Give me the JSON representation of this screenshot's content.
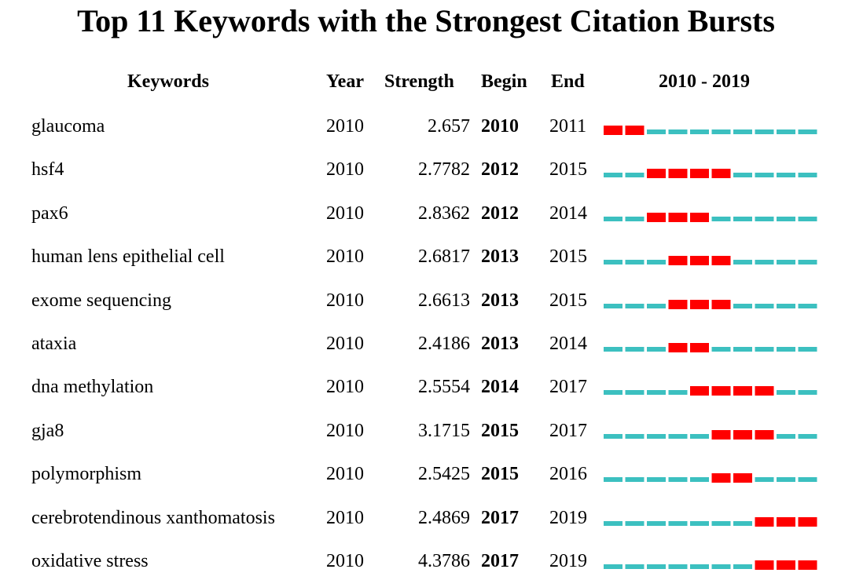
{
  "title": "Top 11 Keywords with the Strongest Citation Bursts",
  "headers": {
    "keywords": "Keywords",
    "year": "Year",
    "strength": "Strength",
    "begin": "Begin",
    "end": "End",
    "range": "2010 - 2019"
  },
  "colors": {
    "burst": "#ff0000",
    "baseline": "#3cc0c0"
  },
  "chart_data": {
    "type": "table",
    "title": "Top 11 Keywords with the Strongest Citation Bursts",
    "year_range": [
      2010,
      2019
    ],
    "rows": [
      {
        "keyword": "glaucoma",
        "year": "2010",
        "strength": "2.657",
        "begin": "2010",
        "end": "2011"
      },
      {
        "keyword": "hsf4",
        "year": "2010",
        "strength": "2.7782",
        "begin": "2012",
        "end": "2015"
      },
      {
        "keyword": "pax6",
        "year": "2010",
        "strength": "2.8362",
        "begin": "2012",
        "end": "2014"
      },
      {
        "keyword": "human lens epithelial cell",
        "year": "2010",
        "strength": "2.6817",
        "begin": "2013",
        "end": "2015"
      },
      {
        "keyword": "exome sequencing",
        "year": "2010",
        "strength": "2.6613",
        "begin": "2013",
        "end": "2015"
      },
      {
        "keyword": "ataxia",
        "year": "2010",
        "strength": "2.4186",
        "begin": "2013",
        "end": "2014"
      },
      {
        "keyword": "dna methylation",
        "year": "2010",
        "strength": "2.5554",
        "begin": "2014",
        "end": "2017"
      },
      {
        "keyword": "gja8",
        "year": "2010",
        "strength": "3.1715",
        "begin": "2015",
        "end": "2017"
      },
      {
        "keyword": "polymorphism",
        "year": "2010",
        "strength": "2.5425",
        "begin": "2015",
        "end": "2016"
      },
      {
        "keyword": "cerebrotendinous xanthomatosis",
        "year": "2010",
        "strength": "2.4869",
        "begin": "2017",
        "end": "2019"
      },
      {
        "keyword": "oxidative stress",
        "year": "2010",
        "strength": "4.3786",
        "begin": "2017",
        "end": "2019"
      }
    ]
  }
}
